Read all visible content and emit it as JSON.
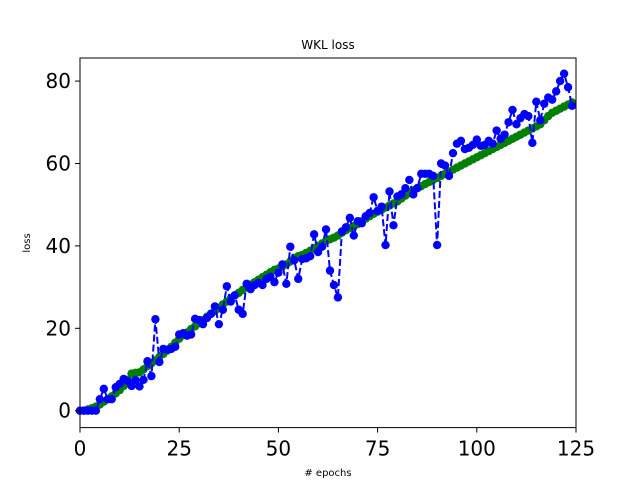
{
  "chart_data": {
    "type": "line",
    "title": "WKL loss",
    "xlabel": "# epochs",
    "ylabel": "loss",
    "xlim": [
      0,
      125
    ],
    "ylim": [
      -4.1,
      85.6
    ],
    "xticks": [
      0,
      25,
      50,
      75,
      100,
      125
    ],
    "yticks": [
      0,
      20,
      40,
      60,
      80
    ],
    "grid": false,
    "legend": "none",
    "series": [
      {
        "color": "#008000",
        "linestyle": "dashed",
        "marker": "circle",
        "x": [
          0,
          1,
          2,
          3,
          4,
          5,
          6,
          7,
          8,
          9,
          10,
          11,
          12,
          13,
          14,
          15,
          16,
          17,
          18,
          19,
          20,
          21,
          22,
          23,
          24,
          25,
          26,
          27,
          28,
          29,
          30,
          31,
          32,
          33,
          34,
          35,
          36,
          37,
          38,
          39,
          40,
          41,
          42,
          43,
          44,
          45,
          46,
          47,
          48,
          49,
          50,
          51,
          52,
          53,
          54,
          55,
          56,
          57,
          58,
          59,
          60,
          61,
          62,
          63,
          64,
          65,
          66,
          67,
          68,
          69,
          70,
          71,
          72,
          73,
          74,
          75,
          76,
          77,
          78,
          79,
          80,
          81,
          82,
          83,
          84,
          85,
          86,
          87,
          88,
          89,
          90,
          91,
          92,
          93,
          94,
          95,
          96,
          97,
          98,
          99,
          100,
          101,
          102,
          103,
          104,
          105,
          106,
          107,
          108,
          109,
          110,
          111,
          112,
          113,
          114,
          115,
          116,
          117,
          118,
          119,
          120,
          121,
          122,
          123,
          124
        ],
        "values": [
          0,
          0,
          0.3,
          0.6,
          1.0,
          1.5,
          2.2,
          2.8,
          3.5,
          4.2,
          5.0,
          6.0,
          7.5,
          9.0,
          9.2,
          9.3,
          10.0,
          10.8,
          11.5,
          12.2,
          13.0,
          13.8,
          14.6,
          15.5,
          16.5,
          17.5,
          18.3,
          19.0,
          19.8,
          20.5,
          21.2,
          22.0,
          22.8,
          23.5,
          24.2,
          25.0,
          25.8,
          26.5,
          27.3,
          28.0,
          28.6,
          29.3,
          30.0,
          30.6,
          31.2,
          31.8,
          32.4,
          33.0,
          33.6,
          34.2,
          34.5,
          35.0,
          35.5,
          36.2,
          37.0,
          37.5,
          37.8,
          38.3,
          38.8,
          39.4,
          40.0,
          40.6,
          41.2,
          41.6,
          42.0,
          42.5,
          43.2,
          43.8,
          44.3,
          44.8,
          45.3,
          46.0,
          46.6,
          47.2,
          47.8,
          48.3,
          48.8,
          49.3,
          49.8,
          50.3,
          50.8,
          51.5,
          52.2,
          52.8,
          53.5,
          54.0,
          54.5,
          55.0,
          55.5,
          56.0,
          56.5,
          57.0,
          57.5,
          58.0,
          58.5,
          59.0,
          59.5,
          60.0,
          60.5,
          61.0,
          61.5,
          62.0,
          62.5,
          63.0,
          63.5,
          64.0,
          64.5,
          65.0,
          65.5,
          66.0,
          66.5,
          67.0,
          67.5,
          68.0,
          68.5,
          69.0,
          69.5,
          70.5,
          71.5,
          72.3,
          72.8,
          73.3,
          73.8,
          74.3,
          74.8
        ]
      },
      {
        "color": "#0000ff",
        "linestyle": "dashed",
        "marker": "circle",
        "x": [
          0,
          1,
          2,
          3,
          4,
          5,
          6,
          7,
          8,
          9,
          10,
          11,
          12,
          13,
          14,
          15,
          16,
          17,
          18,
          19,
          20,
          21,
          22,
          23,
          24,
          25,
          26,
          27,
          28,
          29,
          30,
          31,
          32,
          33,
          34,
          35,
          36,
          37,
          38,
          39,
          40,
          41,
          42,
          43,
          44,
          45,
          46,
          47,
          48,
          49,
          50,
          51,
          52,
          53,
          54,
          55,
          56,
          57,
          58,
          59,
          60,
          61,
          62,
          63,
          64,
          65,
          66,
          67,
          68,
          69,
          70,
          71,
          72,
          73,
          74,
          75,
          76,
          77,
          78,
          79,
          80,
          81,
          82,
          83,
          84,
          85,
          86,
          87,
          88,
          89,
          90,
          91,
          92,
          93,
          94,
          95,
          96,
          97,
          98,
          99,
          100,
          101,
          102,
          103,
          104,
          105,
          106,
          107,
          108,
          109,
          110,
          111,
          112,
          113,
          114,
          115,
          116,
          117,
          118,
          119,
          120,
          121,
          122,
          123,
          124
        ],
        "values": [
          0,
          0,
          0,
          0,
          0,
          2.8,
          5.3,
          2.8,
          2.8,
          5.7,
          6.5,
          7.7,
          7.2,
          6.0,
          7.4,
          5.9,
          7.5,
          12.0,
          8.4,
          22.2,
          11.8,
          15.0,
          14.8,
          15.0,
          15.5,
          18.5,
          18.8,
          18.2,
          18.5,
          22.3,
          22.0,
          21.0,
          22.5,
          23.5,
          25.3,
          21.0,
          24.5,
          30.2,
          26.5,
          28.0,
          24.5,
          23.5,
          30.8,
          29.5,
          30.5,
          31.0,
          30.5,
          32.0,
          32.5,
          31.2,
          33.5,
          35.5,
          30.8,
          39.8,
          36.5,
          32.0,
          36.8,
          37.0,
          37.5,
          42.8,
          38.5,
          39.8,
          44.0,
          34.0,
          30.5,
          27.5,
          43.5,
          44.5,
          46.8,
          42.5,
          46.0,
          45.5,
          47.2,
          48.0,
          51.8,
          48.5,
          49.5,
          40.2,
          53.2,
          45.0,
          52.0,
          52.5,
          54.0,
          56.0,
          52.5,
          54.0,
          57.5,
          57.5,
          57.5,
          57.0,
          40.2,
          60.0,
          59.5,
          57.0,
          62.5,
          64.8,
          65.5,
          63.5,
          63.8,
          64.5,
          65.8,
          64.3,
          64.5,
          65.5,
          64.8,
          68.0,
          66.0,
          67.0,
          70.0,
          73.0,
          69.5,
          71.0,
          72.0,
          71.5,
          65.0,
          75.0,
          70.5,
          74.5,
          76.0,
          75.5,
          77.5,
          80.0,
          81.8,
          78.5,
          74.0
        ]
      }
    ]
  }
}
